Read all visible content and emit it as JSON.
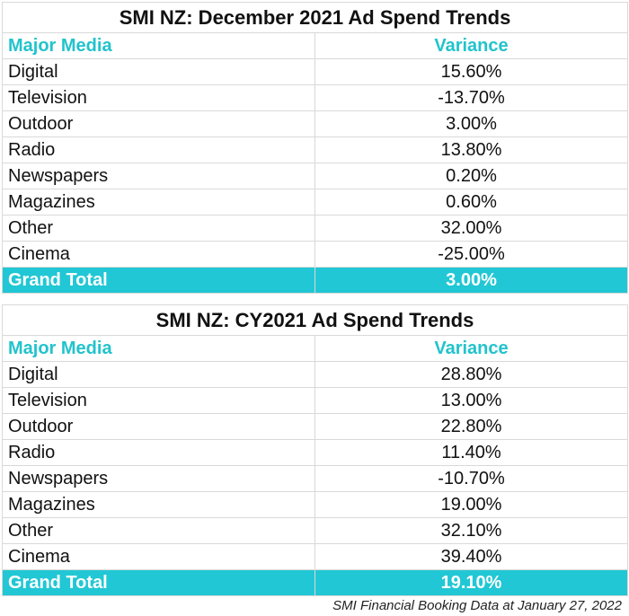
{
  "chart_data": [
    {
      "type": "table",
      "title": "SMI NZ: December 2021 Ad Spend Trends",
      "columns": [
        "Major Media",
        "Variance"
      ],
      "rows": [
        {
          "media": "Digital",
          "variance": "15.60%"
        },
        {
          "media": "Television",
          "variance": "-13.70%"
        },
        {
          "media": "Outdoor",
          "variance": "3.00%"
        },
        {
          "media": "Radio",
          "variance": "13.80%"
        },
        {
          "media": "Newspapers",
          "variance": "0.20%"
        },
        {
          "media": "Magazines",
          "variance": "0.60%"
        },
        {
          "media": "Other",
          "variance": "32.00%"
        },
        {
          "media": "Cinema",
          "variance": "-25.00%"
        }
      ],
      "total": {
        "label": "Grand Total",
        "variance": "3.00%"
      }
    },
    {
      "type": "table",
      "title": "SMI NZ: CY2021 Ad Spend Trends",
      "columns": [
        "Major Media",
        "Variance"
      ],
      "rows": [
        {
          "media": "Digital",
          "variance": "28.80%"
        },
        {
          "media": "Television",
          "variance": "13.00%"
        },
        {
          "media": "Outdoor",
          "variance": "22.80%"
        },
        {
          "media": "Radio",
          "variance": "11.40%"
        },
        {
          "media": "Newspapers",
          "variance": "-10.70%"
        },
        {
          "media": "Magazines",
          "variance": "19.00%"
        },
        {
          "media": "Other",
          "variance": "32.10%"
        },
        {
          "media": "Cinema",
          "variance": "39.40%"
        }
      ],
      "total": {
        "label": "Grand Total",
        "variance": "19.10%"
      }
    }
  ],
  "source_note": "SMI Financial Booking Data at January 27, 2022",
  "colors": {
    "accent": "#21c7d4",
    "header_text": "#21c3cc",
    "total_text": "#ffffff"
  }
}
